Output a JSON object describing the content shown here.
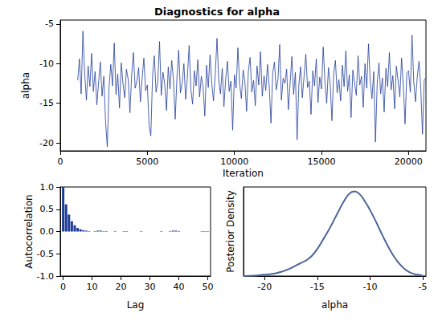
{
  "chart_data": [
    {
      "type": "line",
      "title": "Diagnostics for alpha",
      "x_label": "Iteration",
      "y_label": "alpha",
      "color": "#1f3c9a",
      "grid": false,
      "xlim": [
        0,
        21000
      ],
      "xticks": [
        0,
        5000,
        10000,
        15000,
        20000
      ],
      "ylim": [
        -21,
        -4.5
      ],
      "yticks": [
        -20,
        -15,
        -10,
        -5
      ],
      "x": [
        1000,
        1100,
        1200,
        1300,
        1400,
        1500,
        1600,
        1700,
        1800,
        1900,
        2000,
        2100,
        2200,
        2300,
        2400,
        2500,
        2600,
        2700,
        2800,
        2900,
        3000,
        3100,
        3200,
        3300,
        3400,
        3500,
        3600,
        3700,
        3800,
        3900,
        4000,
        4100,
        4200,
        4300,
        4400,
        4500,
        4600,
        4700,
        4800,
        4900,
        5000,
        5100,
        5200,
        5300,
        5400,
        5500,
        5600,
        5700,
        5800,
        5900,
        6000,
        6100,
        6200,
        6300,
        6400,
        6500,
        6600,
        6700,
        6800,
        6900,
        7000,
        7100,
        7200,
        7300,
        7400,
        7500,
        7600,
        7700,
        7800,
        7900,
        8000,
        8100,
        8200,
        8300,
        8400,
        8500,
        8600,
        8700,
        8800,
        8900,
        9000,
        9100,
        9200,
        9300,
        9400,
        9500,
        9600,
        9700,
        9800,
        9900,
        10000,
        10100,
        10200,
        10300,
        10400,
        10500,
        10600,
        10700,
        10800,
        10900,
        11000,
        11100,
        11200,
        11300,
        11400,
        11500,
        11600,
        11700,
        11800,
        11900,
        12000,
        12100,
        12200,
        12300,
        12400,
        12500,
        12600,
        12700,
        12800,
        12900,
        13000,
        13100,
        13200,
        13300,
        13400,
        13500,
        13600,
        13700,
        13800,
        13900,
        14000,
        14100,
        14200,
        14300,
        14400,
        14500,
        14600,
        14700,
        14800,
        14900,
        15000,
        15100,
        15200,
        15300,
        15400,
        15500,
        15600,
        15700,
        15800,
        15900,
        16000,
        16100,
        16200,
        16300,
        16400,
        16500,
        16600,
        16700,
        16800,
        16900,
        17000,
        17100,
        17200,
        17300,
        17400,
        17500,
        17600,
        17700,
        17800,
        17900,
        18000,
        18100,
        18200,
        18300,
        18400,
        18500,
        18600,
        18700,
        18800,
        18900,
        19000,
        19100,
        19200,
        19300,
        19400,
        19500,
        19600,
        19700,
        19800,
        19900,
        20000,
        20100,
        20200,
        20300,
        20400,
        20500,
        20600,
        20700,
        20800,
        20900,
        21000
      ],
      "values": [
        -12.1,
        -9.4,
        -13.8,
        -5.9,
        -11.2,
        -14.6,
        -10.3,
        -12.9,
        -8.7,
        -13.5,
        -11.0,
        -15.2,
        -12.4,
        -9.8,
        -14.1,
        -11.6,
        -17.3,
        -20.5,
        -13.0,
        -10.1,
        -12.8,
        -7.4,
        -13.9,
        -11.3,
        -15.6,
        -9.9,
        -12.5,
        -14.3,
        -10.7,
        -12.0,
        -16.2,
        -11.4,
        -8.6,
        -13.1,
        -12.2,
        -10.5,
        -14.8,
        -11.9,
        -9.3,
        -13.4,
        -12.7,
        -17.8,
        -19.1,
        -11.5,
        -9.0,
        -13.6,
        -12.3,
        -7.2,
        -14.0,
        -11.1,
        -12.6,
        -15.9,
        -10.4,
        -13.2,
        -9.6,
        -12.1,
        -17.0,
        -11.8,
        -8.3,
        -13.7,
        -12.4,
        -10.0,
        -14.5,
        -11.7,
        -7.7,
        -13.3,
        -15.1,
        -10.9,
        -12.8,
        -9.5,
        -14.2,
        -11.6,
        -12.9,
        -16.6,
        -10.2,
        -13.0,
        -8.9,
        -12.5,
        -14.7,
        -11.3,
        -6.8,
        -12.0,
        -13.8,
        -10.6,
        -15.4,
        -11.9,
        -9.7,
        -13.5,
        -12.2,
        -18.4,
        -11.4,
        -13.1,
        -8.0,
        -12.6,
        -14.4,
        -10.8,
        -12.3,
        -16.0,
        -11.0,
        -9.2,
        -13.6,
        -12.1,
        -15.3,
        -10.3,
        -12.7,
        -8.5,
        -14.1,
        -11.5,
        -13.4,
        -10.1,
        -12.9,
        -17.5,
        -11.2,
        -9.8,
        -13.3,
        -12.0,
        -7.6,
        -14.6,
        -11.8,
        -12.5,
        -10.7,
        -15.8,
        -12.4,
        -9.1,
        -13.9,
        -11.1,
        -19.6,
        -12.7,
        -10.4,
        -14.3,
        -11.6,
        -8.8,
        -13.0,
        -12.2,
        -16.4,
        -10.9,
        -12.8,
        -9.4,
        -14.9,
        -11.7,
        -13.2,
        -7.9,
        -12.3,
        -15.0,
        -10.5,
        -12.6,
        -17.2,
        -11.3,
        -9.6,
        -13.7,
        -12.0,
        -14.7,
        -10.2,
        -12.9,
        -8.4,
        -13.5,
        -11.4,
        -16.8,
        -10.8,
        -12.4,
        -14.0,
        -9.0,
        -12.7,
        -11.6,
        -15.5,
        -10.0,
        -13.1,
        -7.5,
        -12.2,
        -14.4,
        -11.0,
        -19.9,
        -12.5,
        -9.9,
        -13.8,
        -11.8,
        -16.1,
        -10.6,
        -12.9,
        -8.6,
        -13.3,
        -11.5,
        -15.7,
        -10.3,
        -12.1,
        -14.2,
        -9.3,
        -12.8,
        -17.6,
        -11.2,
        -10.9,
        -13.6,
        -6.4,
        -12.3,
        -14.8,
        -11.7,
        -9.7,
        -13.0,
        -18.9,
        -12.0,
        -11.8
      ]
    },
    {
      "type": "bar",
      "x_label": "Lag",
      "y_label": "Autocorrelation",
      "color": "#1f3c9a",
      "grid": false,
      "xlim": [
        -1,
        51
      ],
      "xticks": [
        0,
        10,
        20,
        30,
        40,
        50
      ],
      "ylim": [
        -1,
        1
      ],
      "yticks": [
        {
          "value": -1,
          "label": "-1.0"
        },
        {
          "value": -0.5,
          "label": "-0.5"
        },
        {
          "value": 0,
          "label": "0.0"
        },
        {
          "value": 0.5,
          "label": "0.5"
        },
        {
          "value": 1,
          "label": "1.0"
        }
      ],
      "x": [
        0,
        1,
        2,
        3,
        4,
        5,
        6,
        7,
        8,
        9,
        10,
        11,
        12,
        13,
        14,
        15,
        16,
        17,
        18,
        19,
        20,
        21,
        22,
        23,
        24,
        25,
        26,
        27,
        28,
        29,
        30,
        31,
        32,
        33,
        34,
        35,
        36,
        37,
        38,
        39,
        40,
        41,
        42,
        43,
        44,
        45,
        46,
        47,
        48,
        49,
        50
      ],
      "values": [
        1.0,
        0.61,
        0.38,
        0.23,
        0.14,
        0.08,
        0.05,
        0.03,
        0.02,
        0.01,
        0.0,
        0.01,
        0.02,
        0.02,
        0.01,
        0.01,
        0.0,
        0.0,
        0.01,
        0.0,
        0.0,
        0.01,
        0.01,
        0.0,
        0.0,
        0.0,
        0.0,
        0.01,
        0.0,
        0.0,
        0.0,
        0.0,
        0.0,
        0.0,
        0.01,
        0.0,
        0.0,
        0.01,
        0.02,
        0.02,
        0.01,
        0.0,
        0.0,
        0.0,
        0.0,
        0.0,
        0.0,
        0.0,
        -0.01,
        -0.01,
        -0.01
      ]
    },
    {
      "type": "line",
      "x_label": "alpha",
      "y_label": "Posterior Density",
      "color": "#4a6699",
      "grid": false,
      "tick_labels": "x",
      "xlim": [
        -22,
        -4.7
      ],
      "xticks": [
        -20,
        -15,
        -10,
        -5
      ],
      "ylim": [
        0,
        0.2
      ],
      "x": [
        -22,
        -21.5,
        -21,
        -20.5,
        -20,
        -19.5,
        -19,
        -18.5,
        -18,
        -17.5,
        -17,
        -16.5,
        -16,
        -15.5,
        -15,
        -14.5,
        -14,
        -13.5,
        -13,
        -12.5,
        -12,
        -11.5,
        -11,
        -10.5,
        -10,
        -9.5,
        -9,
        -8.5,
        -8,
        -7.5,
        -7,
        -6.5,
        -6,
        -5.5,
        -5
      ],
      "values": [
        0.0,
        0.0005,
        0.001,
        0.002,
        0.003,
        0.004,
        0.006,
        0.009,
        0.013,
        0.018,
        0.024,
        0.03,
        0.036,
        0.046,
        0.061,
        0.08,
        0.1,
        0.122,
        0.145,
        0.167,
        0.184,
        0.19,
        0.184,
        0.168,
        0.148,
        0.125,
        0.1,
        0.076,
        0.054,
        0.036,
        0.022,
        0.012,
        0.006,
        0.003,
        0.001
      ]
    }
  ]
}
